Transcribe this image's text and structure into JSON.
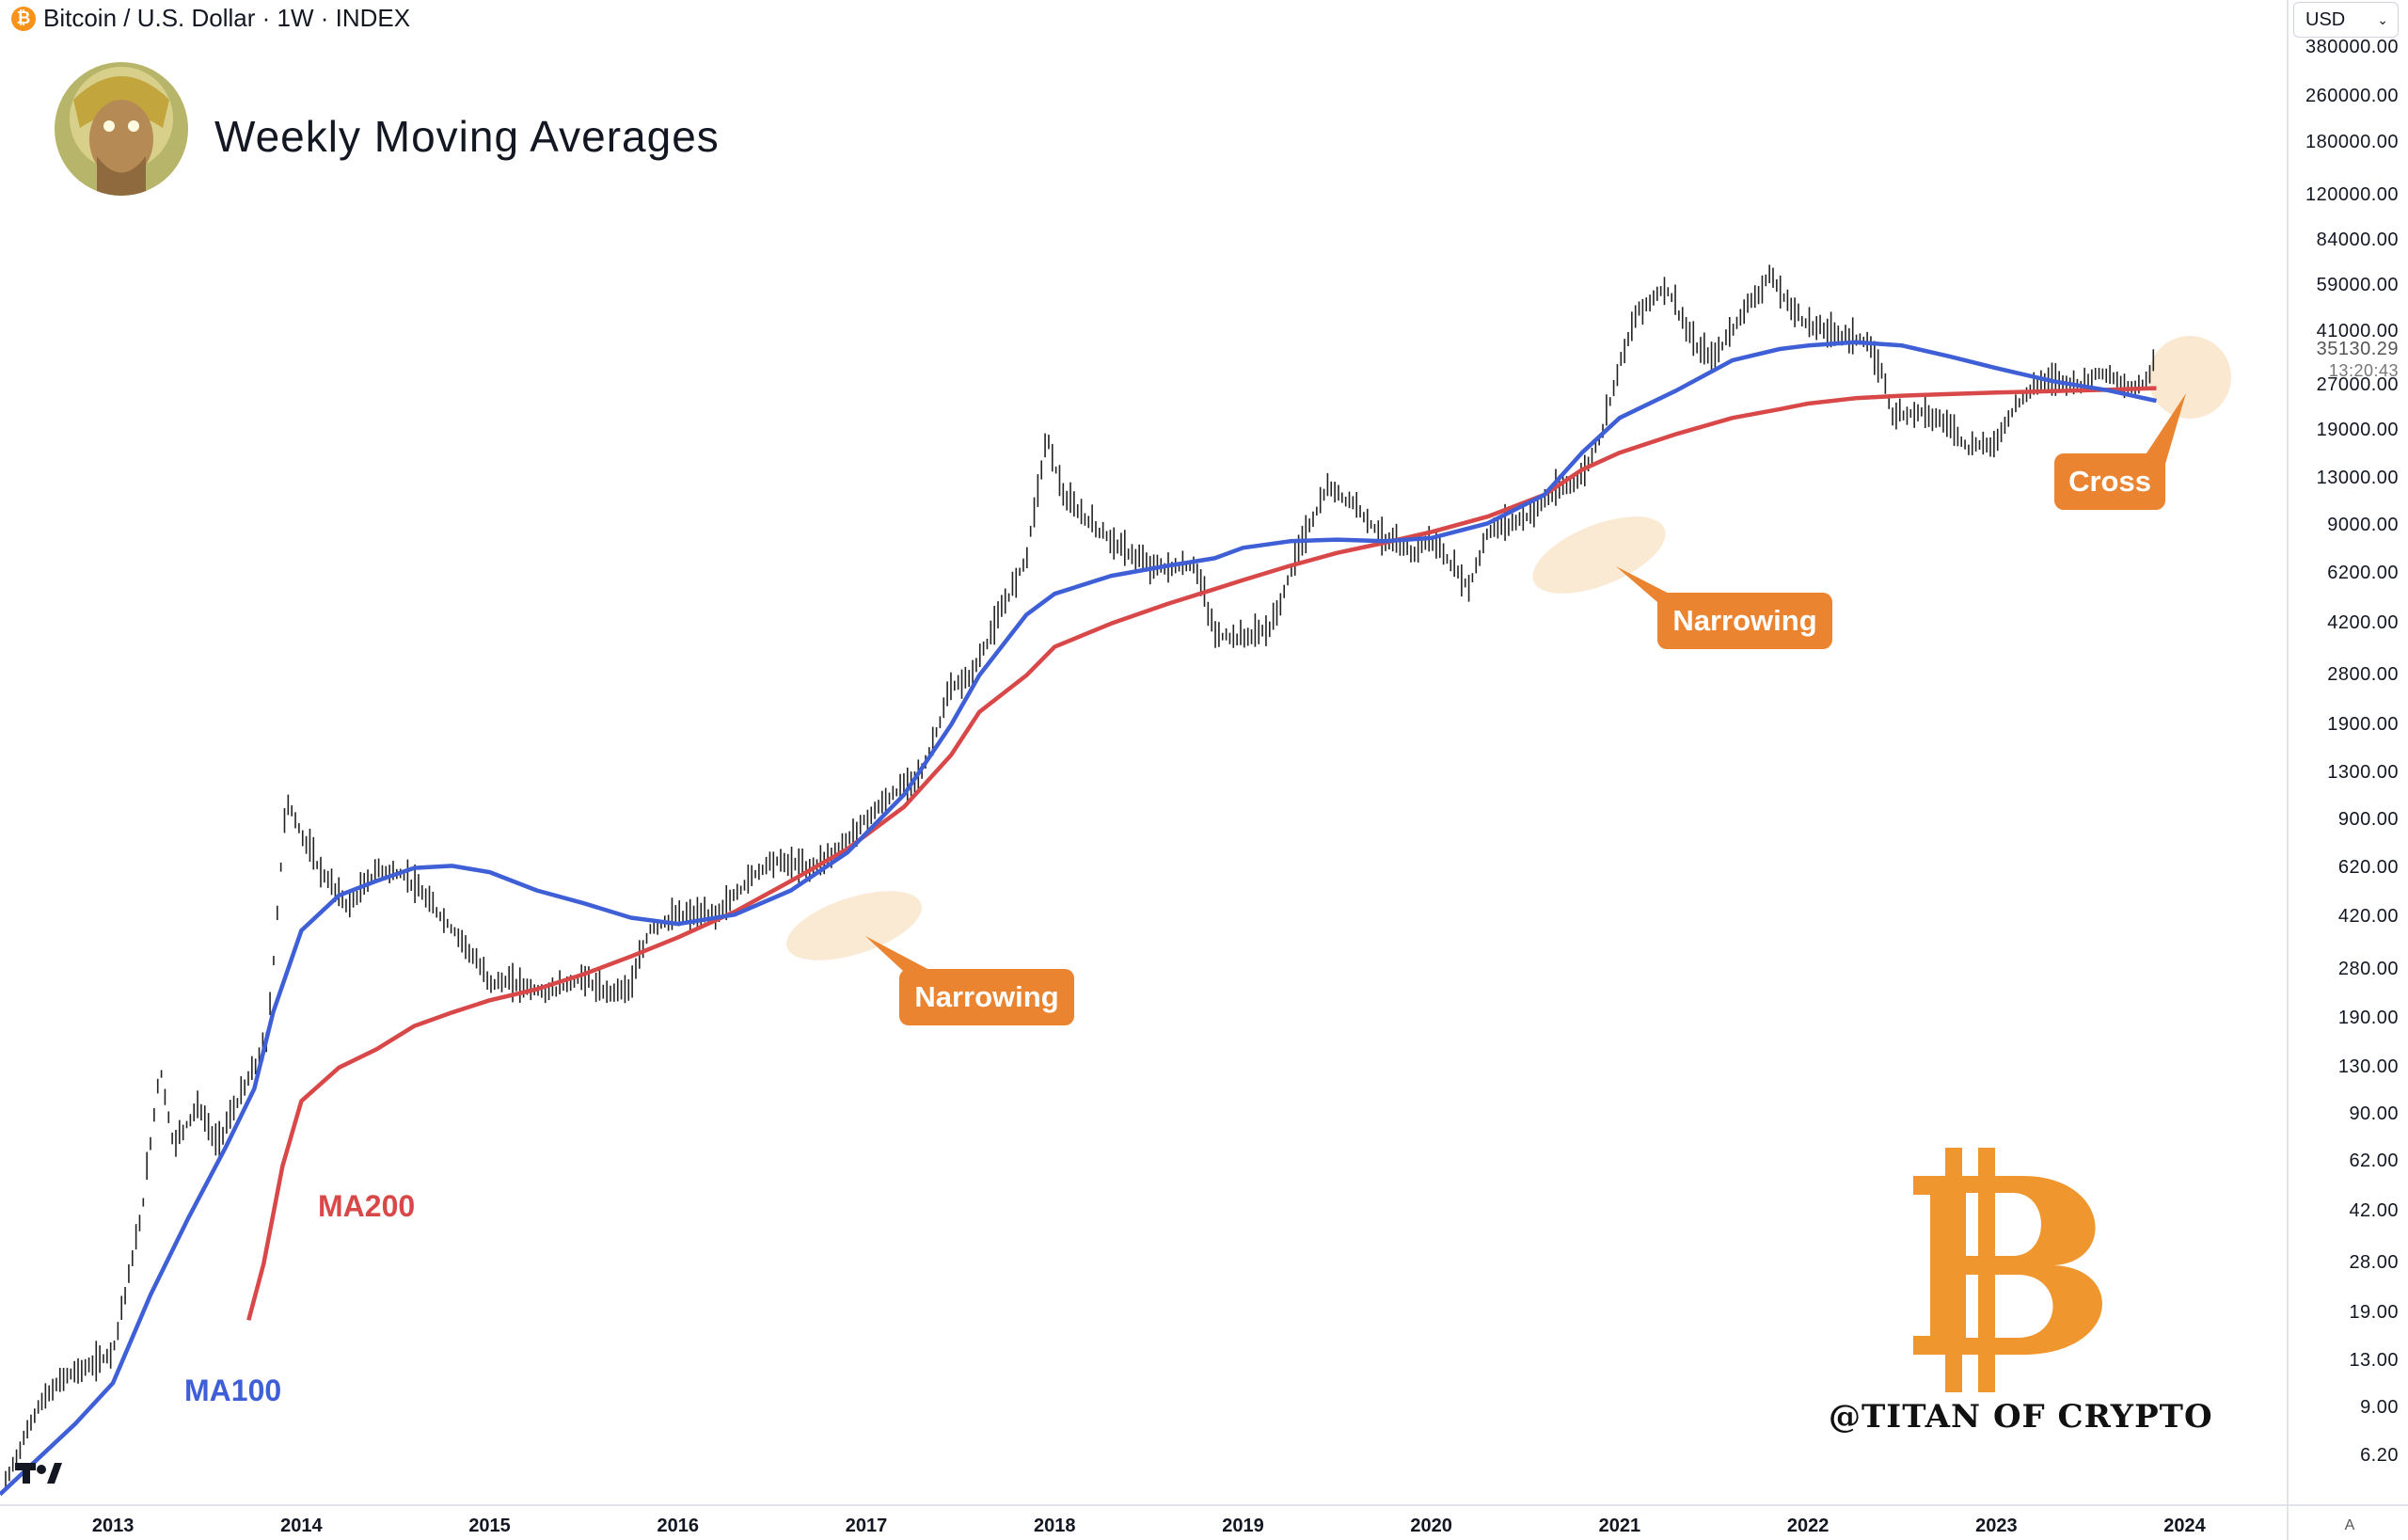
{
  "header": {
    "symbol_icon": "bitcoin-icon",
    "symbol_text": "Bitcoin / U.S. Dollar · 1W · INDEX",
    "chart_title": "Weekly Moving Averages"
  },
  "currency_select": {
    "value": "USD"
  },
  "price_badge": {
    "price": "35130.29",
    "countdown": "13:20:43"
  },
  "annotations": {
    "narrowing_1": "Narrowing",
    "narrowing_2": "Narrowing",
    "cross": "Cross",
    "ma100_label": "MA100",
    "ma200_label": "MA200"
  },
  "watermark": "@TITAN OF CRYPTO",
  "colors": {
    "ma100": "#3e5fd6",
    "ma200": "#d94848",
    "callout": "#ea8431",
    "highlight": "#f7e2c2",
    "bitcoin_logo": "#f0962e",
    "candles": "#222222"
  },
  "chart_data": {
    "type": "line",
    "title": "Weekly Moving Averages",
    "scale": "log",
    "ylim": [
      4.5,
      420000
    ],
    "y_ticks": [
      "380000.00",
      "260000.00",
      "180000.00",
      "120000.00",
      "84000.00",
      "59000.00",
      "41000.00",
      "27000.00",
      "19000.00",
      "13000.00",
      "9000.00",
      "6200.00",
      "4200.00",
      "2800.00",
      "1900.00",
      "1300.00",
      "900.00",
      "620.00",
      "420.00",
      "280.00",
      "190.00",
      "130.00",
      "90.00",
      "62.00",
      "42.00",
      "28.00",
      "19.00",
      "13.00",
      "9.00",
      "6.20"
    ],
    "x_ticks": [
      "2013",
      "2014",
      "2015",
      "2016",
      "2017",
      "2018",
      "2019",
      "2020",
      "2021",
      "2022",
      "2023",
      "2024"
    ],
    "xlim": [
      2012.4,
      2024.0
    ],
    "price_approx": [
      [
        2012.43,
        5.0
      ],
      [
        2012.6,
        9.0
      ],
      [
        2012.75,
        11.5
      ],
      [
        2012.9,
        12.5
      ],
      [
        2013.0,
        14
      ],
      [
        2013.15,
        40
      ],
      [
        2013.25,
        130
      ],
      [
        2013.32,
        70
      ],
      [
        2013.45,
        95
      ],
      [
        2013.55,
        70
      ],
      [
        2013.7,
        110
      ],
      [
        2013.82,
        160
      ],
      [
        2013.88,
        500
      ],
      [
        2013.92,
        1050
      ],
      [
        2014.0,
        800
      ],
      [
        2014.1,
        600
      ],
      [
        2014.25,
        450
      ],
      [
        2014.4,
        600
      ],
      [
        2014.55,
        580
      ],
      [
        2014.7,
        450
      ],
      [
        2014.85,
        350
      ],
      [
        2015.0,
        250
      ],
      [
        2015.1,
        250
      ],
      [
        2015.3,
        230
      ],
      [
        2015.5,
        260
      ],
      [
        2015.6,
        230
      ],
      [
        2015.75,
        240
      ],
      [
        2015.85,
        380
      ],
      [
        2016.0,
        420
      ],
      [
        2016.2,
        420
      ],
      [
        2016.4,
        580
      ],
      [
        2016.5,
        650
      ],
      [
        2016.7,
        610
      ],
      [
        2016.85,
        700
      ],
      [
        2017.0,
        900
      ],
      [
        2017.15,
        1100
      ],
      [
        2017.3,
        1300
      ],
      [
        2017.45,
        2500
      ],
      [
        2017.55,
        2700
      ],
      [
        2017.7,
        4300
      ],
      [
        2017.85,
        7000
      ],
      [
        2017.96,
        18000
      ],
      [
        2018.05,
        11000
      ],
      [
        2018.2,
        9000
      ],
      [
        2018.35,
        7500
      ],
      [
        2018.5,
        6500
      ],
      [
        2018.6,
        6400
      ],
      [
        2018.75,
        6500
      ],
      [
        2018.85,
        3800
      ],
      [
        2019.0,
        3700
      ],
      [
        2019.15,
        4000
      ],
      [
        2019.3,
        7500
      ],
      [
        2019.45,
        12000
      ],
      [
        2019.6,
        10500
      ],
      [
        2019.75,
        8000
      ],
      [
        2019.9,
        7200
      ],
      [
        2020.0,
        8000
      ],
      [
        2020.2,
        5500
      ],
      [
        2020.3,
        8500
      ],
      [
        2020.5,
        9500
      ],
      [
        2020.65,
        11500
      ],
      [
        2020.8,
        13000
      ],
      [
        2020.9,
        18000
      ],
      [
        2021.0,
        32000
      ],
      [
        2021.1,
        48000
      ],
      [
        2021.25,
        58000
      ],
      [
        2021.4,
        36000
      ],
      [
        2021.5,
        33000
      ],
      [
        2021.65,
        47000
      ],
      [
        2021.8,
        63000
      ],
      [
        2021.9,
        50000
      ],
      [
        2022.0,
        43000
      ],
      [
        2022.15,
        40000
      ],
      [
        2022.3,
        38000
      ],
      [
        2022.4,
        29000
      ],
      [
        2022.45,
        21000
      ],
      [
        2022.6,
        22000
      ],
      [
        2022.75,
        19500
      ],
      [
        2022.85,
        16500
      ],
      [
        2023.0,
        17000
      ],
      [
        2023.1,
        23000
      ],
      [
        2023.25,
        28000
      ],
      [
        2023.45,
        27000
      ],
      [
        2023.55,
        30000
      ],
      [
        2023.7,
        26000
      ],
      [
        2023.8,
        27500
      ],
      [
        2023.85,
        35000
      ]
    ],
    "series": [
      {
        "name": "MA100",
        "points": [
          [
            2012.4,
            4.6
          ],
          [
            2012.8,
            8
          ],
          [
            2013.0,
            11
          ],
          [
            2013.2,
            22
          ],
          [
            2013.4,
            40
          ],
          [
            2013.6,
            70
          ],
          [
            2013.75,
            110
          ],
          [
            2013.85,
            200
          ],
          [
            2014.0,
            380
          ],
          [
            2014.2,
            500
          ],
          [
            2014.4,
            560
          ],
          [
            2014.6,
            620
          ],
          [
            2014.8,
            630
          ],
          [
            2015.0,
            600
          ],
          [
            2015.25,
            520
          ],
          [
            2015.5,
            470
          ],
          [
            2015.75,
            420
          ],
          [
            2016.0,
            400
          ],
          [
            2016.3,
            430
          ],
          [
            2016.6,
            520
          ],
          [
            2016.9,
            700
          ],
          [
            2017.2,
            1100
          ],
          [
            2017.45,
            1900
          ],
          [
            2017.6,
            2800
          ],
          [
            2017.85,
            4500
          ],
          [
            2018.0,
            5300
          ],
          [
            2018.3,
            6100
          ],
          [
            2018.6,
            6600
          ],
          [
            2018.85,
            7000
          ],
          [
            2019.0,
            7600
          ],
          [
            2019.25,
            8000
          ],
          [
            2019.5,
            8100
          ],
          [
            2019.75,
            8000
          ],
          [
            2020.0,
            8200
          ],
          [
            2020.3,
            9200
          ],
          [
            2020.6,
            11500
          ],
          [
            2020.8,
            16000
          ],
          [
            2021.0,
            21000
          ],
          [
            2021.3,
            26000
          ],
          [
            2021.6,
            33000
          ],
          [
            2021.85,
            36000
          ],
          [
            2022.0,
            37000
          ],
          [
            2022.25,
            38000
          ],
          [
            2022.5,
            37000
          ],
          [
            2022.75,
            34000
          ],
          [
            2023.0,
            31000
          ],
          [
            2023.3,
            28000
          ],
          [
            2023.6,
            26000
          ],
          [
            2023.85,
            24000
          ]
        ]
      },
      {
        "name": "MA200",
        "points": [
          [
            2013.72,
            18
          ],
          [
            2013.8,
            28
          ],
          [
            2013.9,
            60
          ],
          [
            2014.0,
            100
          ],
          [
            2014.2,
            130
          ],
          [
            2014.4,
            150
          ],
          [
            2014.6,
            180
          ],
          [
            2014.8,
            200
          ],
          [
            2015.0,
            220
          ],
          [
            2015.25,
            240
          ],
          [
            2015.5,
            270
          ],
          [
            2015.75,
            310
          ],
          [
            2016.0,
            360
          ],
          [
            2016.3,
            440
          ],
          [
            2016.6,
            560
          ],
          [
            2016.9,
            720
          ],
          [
            2017.2,
            1000
          ],
          [
            2017.45,
            1500
          ],
          [
            2017.6,
            2100
          ],
          [
            2017.85,
            2800
          ],
          [
            2018.0,
            3500
          ],
          [
            2018.3,
            4200
          ],
          [
            2018.6,
            4900
          ],
          [
            2018.85,
            5500
          ],
          [
            2019.0,
            5900
          ],
          [
            2019.25,
            6600
          ],
          [
            2019.5,
            7300
          ],
          [
            2019.75,
            7900
          ],
          [
            2020.0,
            8600
          ],
          [
            2020.3,
            9700
          ],
          [
            2020.6,
            11500
          ],
          [
            2020.8,
            14000
          ],
          [
            2021.0,
            16000
          ],
          [
            2021.3,
            18500
          ],
          [
            2021.6,
            21000
          ],
          [
            2021.85,
            22500
          ],
          [
            2022.0,
            23500
          ],
          [
            2022.25,
            24500
          ],
          [
            2022.5,
            25000
          ],
          [
            2022.75,
            25300
          ],
          [
            2023.0,
            25600
          ],
          [
            2023.3,
            25900
          ],
          [
            2023.6,
            26200
          ],
          [
            2023.85,
            26500
          ]
        ]
      }
    ],
    "annotations": [
      {
        "text": "Narrowing",
        "x": 2016.7,
        "y": 480
      },
      {
        "text": "Narrowing",
        "x": 2020.7,
        "y": 11000
      },
      {
        "text": "Cross",
        "x": 2023.8,
        "y": 24000
      }
    ]
  }
}
